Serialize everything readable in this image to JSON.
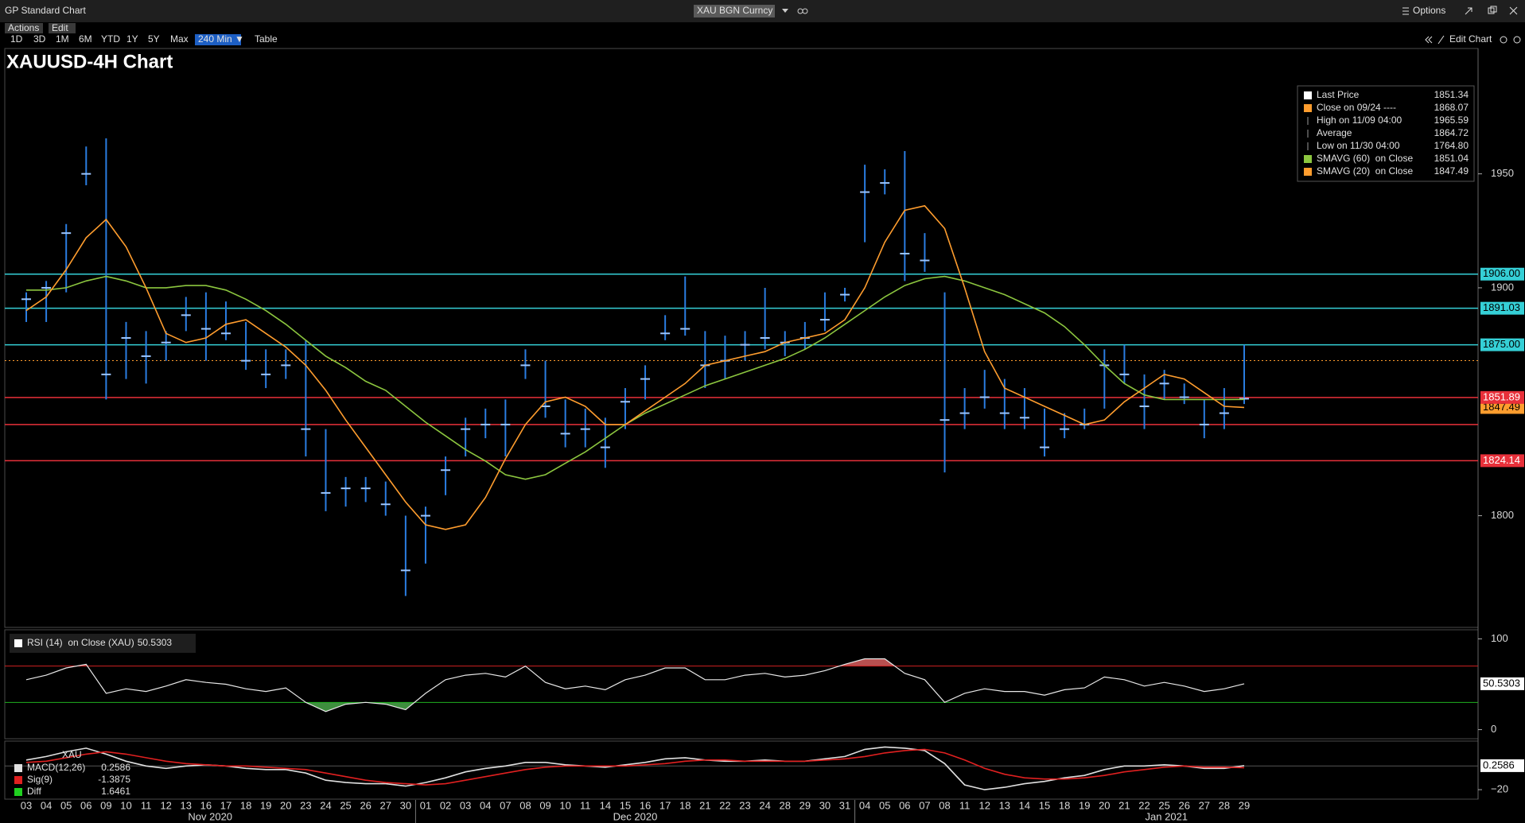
{
  "window": {
    "title": "GP Standard Chart",
    "ticker": "XAU BGN Curncy",
    "options": "Options",
    "menus": [
      "Actions",
      "Edit"
    ],
    "ranges": [
      "1D",
      "3D",
      "1M",
      "6M",
      "YTD",
      "1Y",
      "5Y",
      "Max"
    ],
    "interval": "240 Min ▼",
    "table": "Table",
    "edit_chart": "Edit Chart"
  },
  "chart_data": [
    {
      "type": "candlestick",
      "title": "XAUUSD-4H Chart",
      "categories": [
        "03",
        "04",
        "05",
        "06",
        "09",
        "10",
        "11",
        "12",
        "13",
        "16",
        "17",
        "18",
        "19",
        "20",
        "23",
        "24",
        "25",
        "26",
        "27",
        "30",
        "01",
        "02",
        "03",
        "04",
        "07",
        "08",
        "09",
        "10",
        "11",
        "14",
        "15",
        "16",
        "17",
        "18",
        "21",
        "22",
        "23",
        "24",
        "28",
        "29",
        "30",
        "31",
        "04",
        "05",
        "06",
        "07",
        "08",
        "11",
        "12",
        "13",
        "14",
        "15",
        "18",
        "19",
        "20",
        "21",
        "22",
        "25",
        "26",
        "27",
        "28",
        "29"
      ],
      "months": [
        "Nov 2020",
        "Dec 2020",
        "Jan 2021"
      ],
      "high": [
        1898,
        1903,
        1928,
        1962,
        1965.59,
        1885,
        1881,
        1881,
        1896,
        1898,
        1894,
        1885,
        1873,
        1873,
        1877,
        1838,
        1817,
        1817,
        1815,
        1800,
        1804,
        1826,
        1843,
        1847,
        1851,
        1873,
        1868,
        1851,
        1847,
        1843,
        1856,
        1866,
        1888,
        1905,
        1881,
        1879,
        1881,
        1900,
        1881,
        1885,
        1898,
        1900,
        1954,
        1952,
        1960,
        1924,
        1898,
        1856,
        1864,
        1860,
        1856,
        1847,
        1845,
        1847,
        1873,
        1875,
        1862,
        1864,
        1858,
        1851,
        1856,
        1875
      ],
      "low": [
        1885,
        1885,
        1898,
        1945,
        1851,
        1860,
        1858,
        1868,
        1881,
        1868,
        1877,
        1864,
        1856,
        1860,
        1826,
        1802,
        1804,
        1806,
        1800,
        1764.8,
        1779,
        1809,
        1826,
        1834,
        1826,
        1860,
        1843,
        1830,
        1830,
        1821,
        1838,
        1851,
        1877,
        1879,
        1856,
        1860,
        1868,
        1873,
        1870,
        1873,
        1881,
        1894,
        1920,
        1941,
        1903,
        1907,
        1819,
        1838,
        1847,
        1838,
        1838,
        1826,
        1834,
        1838,
        1847,
        1858,
        1838,
        1851,
        1849,
        1834,
        1838,
        1849
      ],
      "close": [
        1895,
        1900,
        1924,
        1950,
        1862,
        1878,
        1870,
        1876,
        1888,
        1882,
        1880,
        1868,
        1862,
        1866,
        1838,
        1810,
        1812,
        1812,
        1805,
        1776,
        1800,
        1820,
        1838,
        1840,
        1840,
        1866,
        1848,
        1836,
        1838,
        1830,
        1850,
        1860,
        1880,
        1882,
        1866,
        1868,
        1875,
        1878,
        1876,
        1878,
        1886,
        1897,
        1942,
        1946,
        1915,
        1912,
        1842,
        1845,
        1852,
        1845,
        1843,
        1830,
        1838,
        1840,
        1866,
        1862,
        1848,
        1858,
        1852,
        1840,
        1845,
        1851.34
      ],
      "color": "#2a7de1",
      "series": [
        {
          "color": "#8cc63f",
          "values": [
            1899,
            1899,
            1900,
            1903,
            1905,
            1903,
            1900,
            1900,
            1901,
            1901,
            1899,
            1895,
            1890,
            1884,
            1877,
            1870,
            1865,
            1859,
            1855,
            1848,
            1841,
            1835,
            1829,
            1824,
            1818,
            1816,
            1818,
            1823,
            1828,
            1834,
            1840,
            1845,
            1849,
            1853,
            1857,
            1860,
            1863,
            1866,
            1869,
            1873,
            1878,
            1884,
            1890,
            1896,
            1901,
            1904,
            1905,
            1903,
            1900,
            1897,
            1893,
            1889,
            1883,
            1875,
            1866,
            1858,
            1853,
            1851,
            1851,
            1851,
            1851,
            1851.04
          ]
        },
        {
          "color": "#ff9d2e",
          "values": [
            1890,
            1896,
            1908,
            1922,
            1930,
            1918,
            1900,
            1880,
            1876,
            1878,
            1884,
            1886,
            1880,
            1874,
            1866,
            1855,
            1842,
            1830,
            1818,
            1806,
            1796,
            1794,
            1796,
            1808,
            1825,
            1840,
            1850,
            1852,
            1848,
            1840,
            1840,
            1846,
            1852,
            1858,
            1866,
            1868,
            1870,
            1872,
            1876,
            1878,
            1880,
            1886,
            1900,
            1920,
            1934,
            1936,
            1926,
            1900,
            1872,
            1856,
            1852,
            1848,
            1844,
            1840,
            1842,
            1850,
            1856,
            1862,
            1860,
            1854,
            1848,
            1847.49
          ]
        }
      ],
      "ylim": [
        1751,
        2005
      ],
      "yticks": [
        1800,
        1900,
        1950
      ],
      "levels": [
        {
          "value": 1906,
          "label": "1906.00",
          "color": "#35cfd6",
          "text_color": "#000000"
        },
        {
          "value": 1891.03,
          "label": "1891.03",
          "color": "#35cfd6",
          "text_color": "#000000"
        },
        {
          "value": 1875,
          "label": "1875.00",
          "color": "#35cfd6",
          "text_color": "#000000"
        },
        {
          "value": 1851.89,
          "label": "1851.89",
          "color": "#e8303a",
          "text_color": "#ffffff"
        },
        {
          "value": 1840,
          "color": "#e8303a"
        },
        {
          "value": 1824.14,
          "label": "1824.14",
          "color": "#e8303a",
          "text_color": "#ffffff"
        }
      ],
      "legend": {
        "corner": "top-right",
        "entries": [
          {
            "text": "Last Price",
            "value": 1851.34,
            "color": "#ffffff",
            "swatch": "square"
          },
          {
            "text": "Close on 09/24 ----",
            "value": 1868.07,
            "color": "#ff9d2e",
            "swatch": "square"
          },
          {
            "text": "High on 11/09 04:00",
            "value": 1965.59,
            "color": "#9a9a9a",
            "swatch": "line"
          },
          {
            "text": "Average",
            "value": 1864.72,
            "color": "#9a9a9a",
            "swatch": "line"
          },
          {
            "text": "Low on 11/30 04:00",
            "value": 1764.8,
            "value_label": "1764.80",
            "color": "#9a9a9a",
            "swatch": "line"
          },
          {
            "text": "SMAVG (60)  on Close",
            "value": 1851.04,
            "color": "#8cc63f",
            "swatch": "square"
          },
          {
            "text": "SMAVG (20)  on Close",
            "value": 1847.49,
            "color": "#ff9d2e",
            "swatch": "square"
          }
        ]
      }
    },
    {
      "type": "line",
      "title": "RSI (14)  on Close (XAU)",
      "last": 50.5303,
      "color": "#e8e8e8",
      "values": [
        55,
        60,
        68,
        72,
        40,
        45,
        42,
        48,
        55,
        52,
        50,
        45,
        42,
        46,
        30,
        20,
        28,
        30,
        28,
        22,
        40,
        55,
        60,
        62,
        58,
        70,
        52,
        45,
        48,
        44,
        55,
        60,
        68,
        68,
        55,
        55,
        60,
        62,
        58,
        60,
        65,
        72,
        78,
        78,
        62,
        55,
        30,
        40,
        45,
        42,
        42,
        38,
        44,
        46,
        58,
        55,
        48,
        52,
        48,
        42,
        45,
        50.5303
      ],
      "ylim": [
        -10,
        110
      ],
      "yticks": [
        0,
        100
      ],
      "levels": [
        {
          "value": 70,
          "color": "#d02020",
          "fill": "#b85050",
          "side": "above"
        },
        {
          "value": 30,
          "color": "#20b020",
          "fill": "#3e8e3e",
          "side": "below"
        }
      ]
    },
    {
      "type": "line",
      "title": "XAU",
      "last": 0.2586,
      "series": [
        {
          "name": "MACD(12,26)",
          "legend_value": 0.2586,
          "color": "#e0e0e0",
          "values": [
            5,
            8,
            12,
            15,
            10,
            4,
            0,
            -2,
            0,
            1,
            0,
            -2,
            -3,
            -3,
            -6,
            -12,
            -14,
            -15,
            -15,
            -17,
            -14,
            -10,
            -5,
            -2,
            0,
            3,
            3,
            1,
            0,
            -1,
            1,
            3,
            6,
            7,
            5,
            4,
            4,
            5,
            4,
            4,
            6,
            8,
            14,
            16,
            15,
            13,
            2,
            -16,
            -20,
            -18,
            -15,
            -13,
            -10,
            -8,
            -3,
            0,
            0,
            1,
            0,
            -2,
            -2,
            0.2586
          ]
        },
        {
          "name": "Sig(9)",
          "legend_value": -1.3875,
          "color": "#e02020",
          "values": [
            3,
            4,
            7,
            10,
            12,
            10,
            7,
            4,
            2,
            1,
            0,
            0,
            -1,
            -2,
            -3,
            -6,
            -9,
            -12,
            -14,
            -15,
            -16,
            -15,
            -12,
            -9,
            -6,
            -3,
            -1,
            0,
            0,
            0,
            0,
            1,
            2,
            4,
            5,
            5,
            4,
            4,
            4,
            4,
            5,
            6,
            8,
            11,
            13,
            14,
            11,
            5,
            -2,
            -7,
            -10,
            -11,
            -11,
            -10,
            -8,
            -5,
            -3,
            -1,
            0,
            -1,
            -1,
            -1.3875
          ]
        },
        {
          "name": "Diff",
          "legend_value": 1.6461,
          "color": "#20d020"
        }
      ],
      "ylim": [
        -28,
        21
      ],
      "yticks": [
        {
          "value": -20,
          "label": "−20"
        }
      ]
    }
  ]
}
